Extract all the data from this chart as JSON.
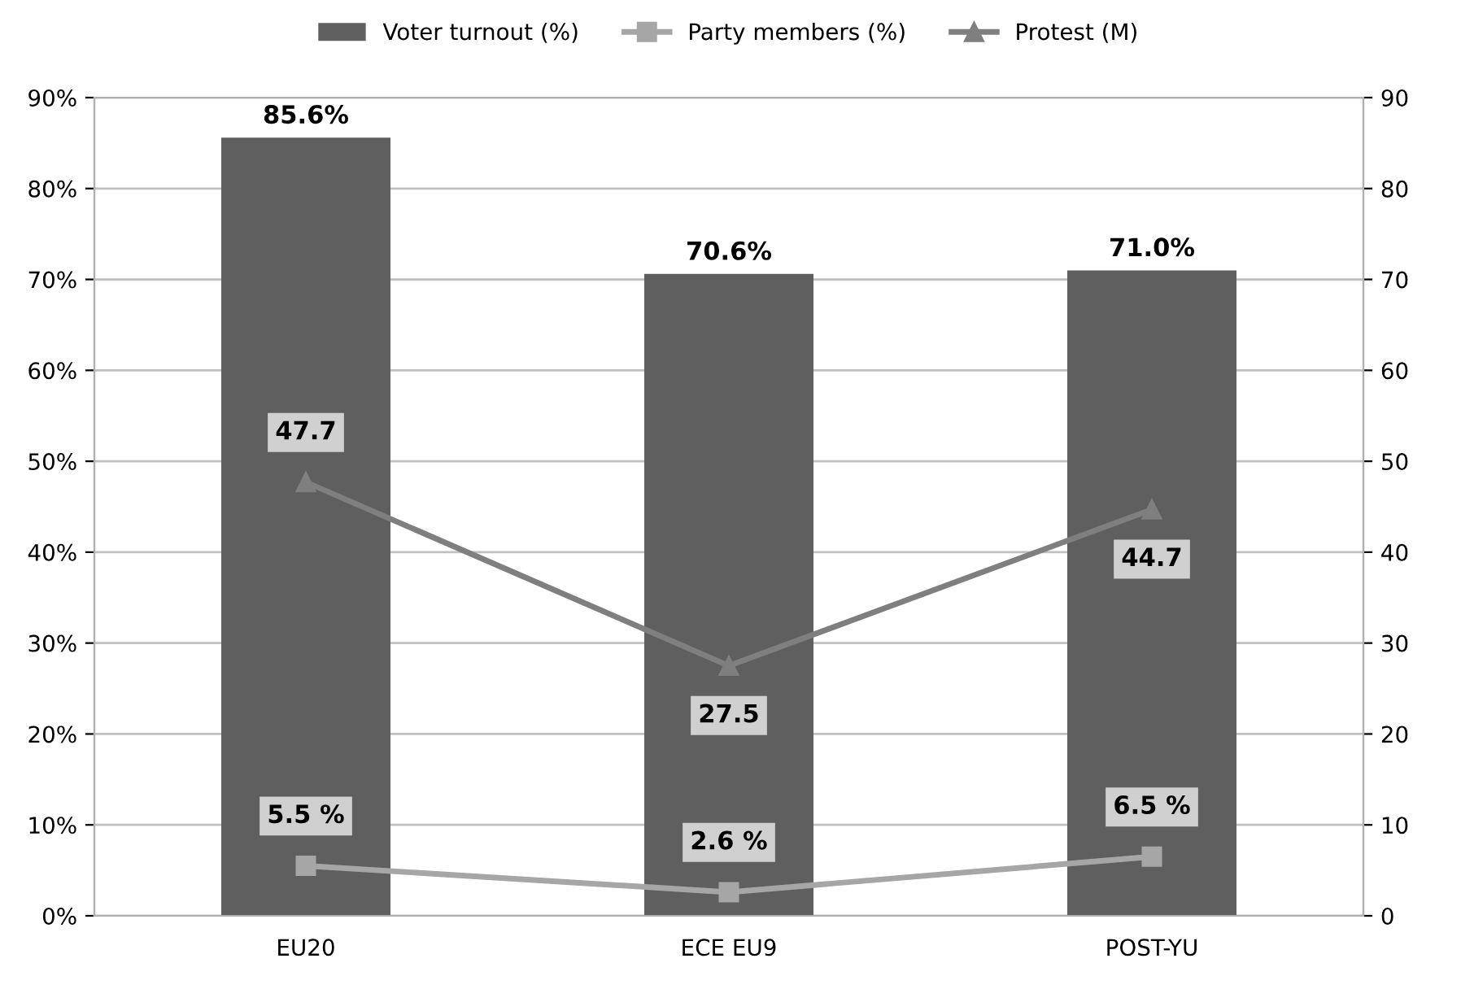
{
  "chart_data": {
    "type": "bar",
    "categories": [
      "EU20",
      "ECE EU9",
      "POST-YU"
    ],
    "series": [
      {
        "name": "Voter turnout (%)",
        "color": "#5f5f5f",
        "values": [
          85.6,
          70.6,
          71.0
        ],
        "value_labels": [
          "85.6%",
          "70.6%",
          "71.0%"
        ]
      },
      {
        "name": "Party members (%)",
        "type": "line",
        "color": "#a6a6a6",
        "marker": "square",
        "values": [
          5.5,
          2.6,
          6.5
        ],
        "value_labels": [
          "5.5 %",
          "2.6 %",
          "6.5 %"
        ]
      },
      {
        "name": "Protest (M)",
        "type": "line",
        "axis": "y2",
        "color": "#7f7f7f",
        "marker": "triangle",
        "values": [
          47.7,
          27.5,
          44.7
        ],
        "value_labels": [
          "47.7",
          "27.5",
          "44.7"
        ]
      }
    ],
    "ylim": [
      0,
      90
    ],
    "yticks": [
      {
        "value": 0,
        "label": "0%"
      },
      {
        "value": 10,
        "label": "10%"
      },
      {
        "value": 20,
        "label": "20%"
      },
      {
        "value": 30,
        "label": "30%"
      },
      {
        "value": 40,
        "label": "40%"
      },
      {
        "value": 50,
        "label": "50%"
      },
      {
        "value": 60,
        "label": "60%"
      },
      {
        "value": 70,
        "label": "70%"
      },
      {
        "value": 80,
        "label": "80%"
      },
      {
        "value": 90,
        "label": "90%"
      }
    ],
    "y2lim": [
      0,
      90
    ],
    "y2ticks": [
      0,
      10,
      20,
      30,
      40,
      50,
      60,
      70,
      80,
      90
    ],
    "grid": "y",
    "legend": "top"
  }
}
